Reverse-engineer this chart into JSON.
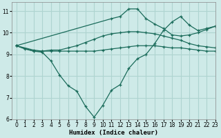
{
  "background_color": "#ceeae8",
  "grid_color": "#aed4d0",
  "line_color": "#1a6b5a",
  "xlabel": "Humidex (Indice chaleur)",
  "xlim": [
    -0.5,
    23
  ],
  "ylim": [
    6,
    11.4
  ],
  "xticks": [
    0,
    1,
    2,
    3,
    4,
    5,
    6,
    7,
    8,
    9,
    10,
    11,
    12,
    13,
    14,
    15,
    16,
    17,
    18,
    19,
    20,
    21,
    22,
    23
  ],
  "yticks": [
    6,
    7,
    8,
    9,
    10,
    11
  ],
  "line1_x": [
    0,
    1,
    2,
    3,
    4,
    5,
    6,
    7,
    8,
    9,
    10,
    11,
    12,
    13,
    14,
    15,
    16,
    17,
    18,
    19,
    20,
    21,
    22,
    23
  ],
  "line1_y": [
    9.4,
    9.25,
    9.15,
    9.15,
    9.15,
    9.15,
    9.15,
    9.15,
    9.15,
    9.15,
    9.2,
    9.25,
    9.3,
    9.35,
    9.4,
    9.4,
    9.4,
    9.35,
    9.3,
    9.3,
    9.25,
    9.2,
    9.15,
    9.15
  ],
  "line2_x": [
    0,
    2,
    3,
    4,
    5,
    6,
    7,
    8,
    9,
    10,
    11,
    12,
    13,
    14,
    15,
    16,
    17,
    18,
    19,
    20,
    21,
    22,
    23
  ],
  "line2_y": [
    9.4,
    9.15,
    9.1,
    8.7,
    8.05,
    7.55,
    7.3,
    6.6,
    6.1,
    6.65,
    7.35,
    7.6,
    8.35,
    8.8,
    9.0,
    9.5,
    10.1,
    10.5,
    10.75,
    10.35,
    10.1,
    10.2,
    10.3
  ],
  "line3_x": [
    0,
    2,
    3,
    4,
    5,
    6,
    7,
    8,
    9,
    10,
    11,
    12,
    13,
    14,
    15,
    16,
    17,
    18,
    19,
    20,
    21,
    22,
    23
  ],
  "line3_y": [
    9.4,
    9.2,
    9.15,
    9.2,
    9.2,
    9.3,
    9.4,
    9.55,
    9.7,
    9.85,
    9.95,
    10.0,
    10.05,
    10.05,
    10.0,
    9.95,
    9.85,
    9.75,
    9.65,
    9.5,
    9.4,
    9.35,
    9.3
  ],
  "line4_x": [
    0,
    11,
    12,
    13,
    14,
    15,
    16,
    17,
    18,
    19,
    20,
    21,
    22,
    23
  ],
  "line4_y": [
    9.4,
    10.65,
    10.75,
    11.1,
    11.1,
    10.65,
    10.4,
    10.2,
    9.9,
    9.85,
    9.9,
    10.0,
    10.15,
    10.3
  ]
}
